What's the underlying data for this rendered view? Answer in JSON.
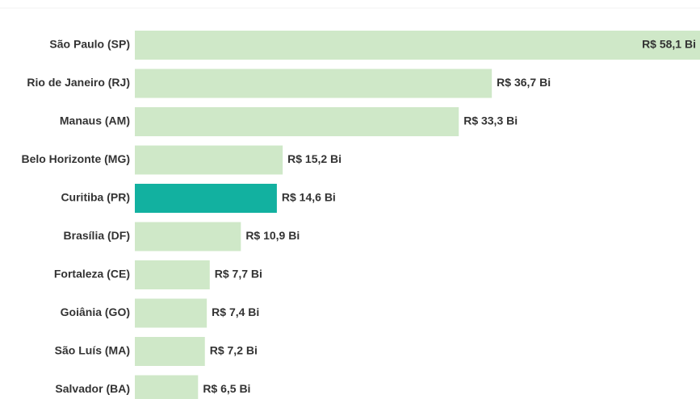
{
  "chart_data": {
    "type": "bar",
    "orientation": "horizontal",
    "categories": [
      "São Paulo (SP)",
      "Rio de Janeiro (RJ)",
      "Manaus (AM)",
      "Belo Horizonte (MG)",
      "Curitiba (PR)",
      "Brasília (DF)",
      "Fortaleza (CE)",
      "Goiânia (GO)",
      "São Luís (MA)",
      "Salvador (BA)"
    ],
    "values": [
      58.1,
      36.7,
      33.3,
      15.2,
      14.6,
      10.9,
      7.7,
      7.4,
      7.2,
      6.5
    ],
    "value_labels": [
      "R$ 58,1 Bi",
      "R$ 36,7 Bi",
      "R$ 33,3 Bi",
      "R$ 15,2 Bi",
      "R$ 14,6 Bi",
      "R$ 10,9 Bi",
      "R$ 7,7 Bi",
      "R$ 7,4 Bi",
      "R$ 7,2 Bi",
      "R$ 6,5 Bi"
    ],
    "colors": [
      "#cfe8c8",
      "#cfe8c8",
      "#cfe8c8",
      "#cfe8c8",
      "#12b1a0",
      "#cfe8c8",
      "#cfe8c8",
      "#cfe8c8",
      "#cfe8c8",
      "#cfe8c8"
    ]
  }
}
